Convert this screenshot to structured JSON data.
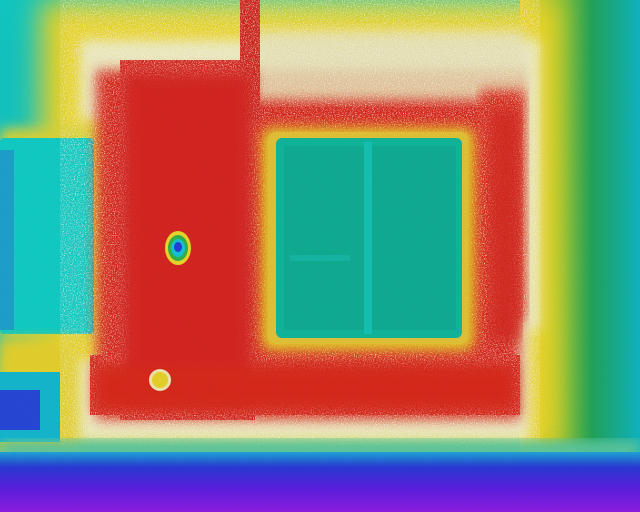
{
  "image": {
    "subject": "thermal-image-of-building-facade",
    "palette": {
      "floor_violet": "#7a1ee0",
      "deep_blue": "#2438d8",
      "wall_cyan": "#12cdc8",
      "wall_teal": "#0fb39a",
      "green_band": "#2fb04a",
      "yellow_band": "#ecd72a",
      "orange_edge": "#e8a23a",
      "speckle_white": "#f6eecb",
      "hot_red": "#d8261c",
      "hot_pink_red": "#e64a45"
    }
  }
}
